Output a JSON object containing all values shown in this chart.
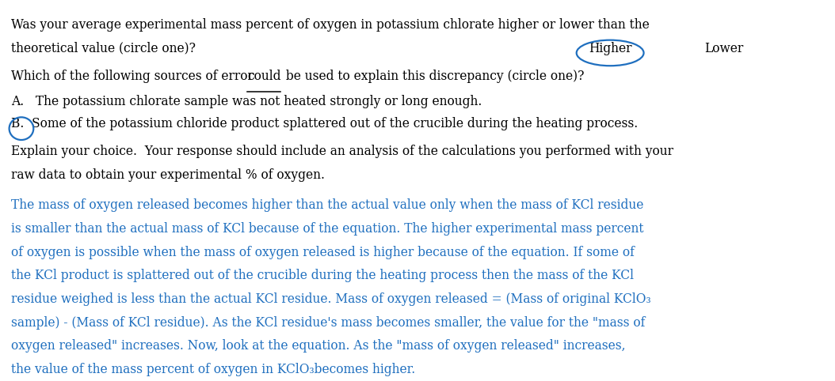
{
  "bg_color": "#ffffff",
  "figsize": [
    10.54,
    4.82
  ],
  "dpi": 100,
  "black_text_color": "#000000",
  "blue_text_color": "#1F6FBF",
  "circle_color": "#1F6FBF",
  "line1": "Was your average experimental mass percent of oxygen in potassium chlorate higher or lower than the",
  "line2": "theoretical value (circle one)?",
  "higher_label": "Higher",
  "lower_label": "Lower",
  "line3_before": "Which of the following sources of error ",
  "line3_underline": "could",
  "line3_after": " be used to explain this discrepancy (circle one)?",
  "line4": "A.   The potassium chlorate sample was not heated strongly or long enough.",
  "line5": "B.  Some of the potassium chloride product splattered out of the crucible during the heating process.",
  "line6": "Explain your choice.  Your response should include an analysis of the calculations you performed with your",
  "line7": "raw data to obtain your experimental % of oxygen.",
  "blue_lines": [
    "The mass of oxygen released becomes higher than the actual value only when the mass of KCl residue",
    "is smaller than the actual mass of KCl because of the equation. The higher experimental mass percent",
    "of oxygen is possible when the mass of oxygen released is higher because of the equation. If some of",
    "the KCl product is splattered out of the crucible during the heating process then the mass of the KCl",
    "residue weighed is less than the actual KCl residue. Mass of oxygen released = (Mass of original KClO₃",
    "sample) - (Mass of KCl residue). As the KCl residue's mass becomes smaller, the value for the \"mass of",
    "oxygen released\" increases. Now, look at the equation. As the \"mass of oxygen released\" increases,",
    "the value of the mass percent of oxygen in KClO₃becomes higher."
  ]
}
